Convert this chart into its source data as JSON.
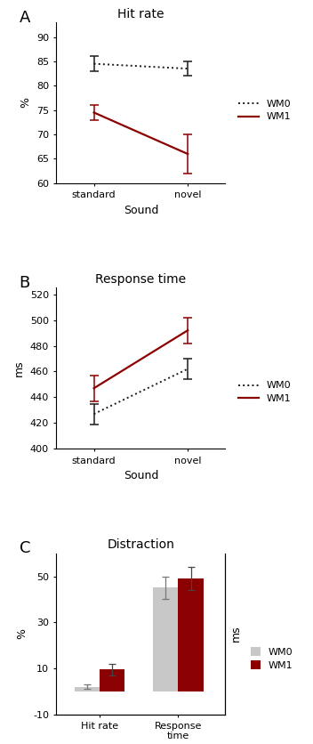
{
  "panel_A": {
    "title": "Hit rate",
    "xlabel": "Sound",
    "ylabel": "%",
    "xtick_labels": [
      "standard",
      "novel"
    ],
    "ylim": [
      60,
      93
    ],
    "yticks": [
      60,
      65,
      70,
      75,
      80,
      85,
      90
    ],
    "wm0_means": [
      84.5,
      83.5
    ],
    "wm0_errors": [
      1.5,
      1.5
    ],
    "wm1_means": [
      74.5,
      66.0
    ],
    "wm1_errors": [
      1.5,
      4.0
    ],
    "wm0_color": "#1a1a1a",
    "wm1_color": "#8b0000",
    "legend_wm0": "WM0",
    "legend_wm1": "WM1"
  },
  "panel_B": {
    "title": "Response time",
    "xlabel": "Sound",
    "ylabel": "ms",
    "xtick_labels": [
      "standard",
      "novel"
    ],
    "ylim": [
      400,
      525
    ],
    "yticks": [
      400,
      420,
      440,
      460,
      480,
      500,
      520
    ],
    "wm0_means": [
      427.0,
      462.0
    ],
    "wm0_errors": [
      8.0,
      8.0
    ],
    "wm1_means": [
      447.0,
      492.0
    ],
    "wm1_errors": [
      10.0,
      10.0
    ],
    "wm0_color": "#1a1a1a",
    "wm1_color": "#8b0000",
    "legend_wm0": "WM0",
    "legend_wm1": "WM1"
  },
  "panel_C": {
    "title": "Distraction",
    "ylabel_left": "%",
    "ylabel_right": "ms",
    "xtick_labels": [
      "Hit rate",
      "Response\ntime"
    ],
    "ylim": [
      -10,
      60
    ],
    "yticks": [
      -10,
      10,
      30,
      50
    ],
    "wm0_values": [
      2.0,
      45.0
    ],
    "wm0_errors": [
      1.0,
      5.0
    ],
    "wm1_values": [
      9.5,
      49.0
    ],
    "wm1_errors": [
      2.5,
      5.0
    ],
    "wm0_color": "#c8c8c8",
    "wm1_color": "#8b0000",
    "legend_wm0": "WM0",
    "legend_wm1": "WM1"
  },
  "label_fontsize": 9,
  "tick_fontsize": 8,
  "title_fontsize": 10,
  "legend_fontsize": 8,
  "panel_label_fontsize": 13
}
